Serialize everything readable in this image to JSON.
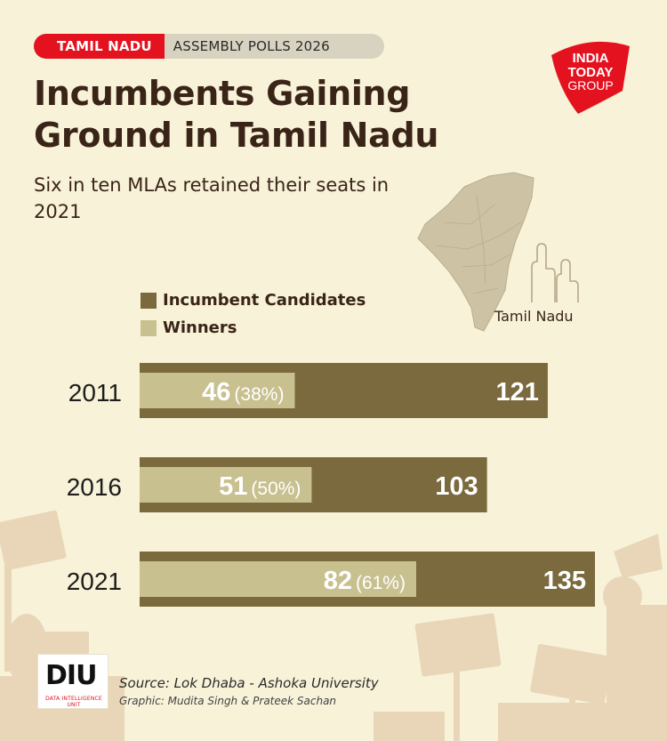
{
  "header": {
    "tag_state": "TAMIL NADU",
    "tag_event": "ASSEMBLY POLLS 2026",
    "title": "Incumbents Gaining Ground in Tamil Nadu",
    "subtitle": "Six in ten MLAs retained their seats in 2021"
  },
  "logo": {
    "line1": "INDIA",
    "line2": "TODAY",
    "line3": "GROUP",
    "color": "#e3121e"
  },
  "map": {
    "label": "Tamil Nadu"
  },
  "legend": {
    "incumbent": "Incumbent Candidates",
    "winners": "Winners"
  },
  "colors": {
    "incumbent": "#7b6a3e",
    "winners": "#c9c08f",
    "background": "#f7f2d8",
    "accent": "#e3121e",
    "text": "#3a2418"
  },
  "chart_data": {
    "type": "bar",
    "orientation": "horizontal",
    "categories": [
      "2011",
      "2016",
      "2021"
    ],
    "series": [
      {
        "name": "Incumbent Candidates",
        "values": [
          121,
          103,
          135
        ]
      },
      {
        "name": "Winners",
        "values": [
          46,
          51,
          82
        ]
      }
    ],
    "winner_share_labels": [
      "(38%)",
      "(50%)",
      "(61%)"
    ],
    "title": "Incumbents Gaining Ground in Tamil Nadu",
    "xlabel": "",
    "ylabel": "",
    "xlim": [
      0,
      135
    ],
    "grid": false,
    "legend_position": "top-left"
  },
  "footer": {
    "diu_logo": "DIU",
    "diu_sub": "DATA INTELLIGENCE UNIT",
    "source": "Source: Lok Dhaba - Ashoka University",
    "credit": "Graphic: Mudita Singh & Prateek Sachan"
  }
}
